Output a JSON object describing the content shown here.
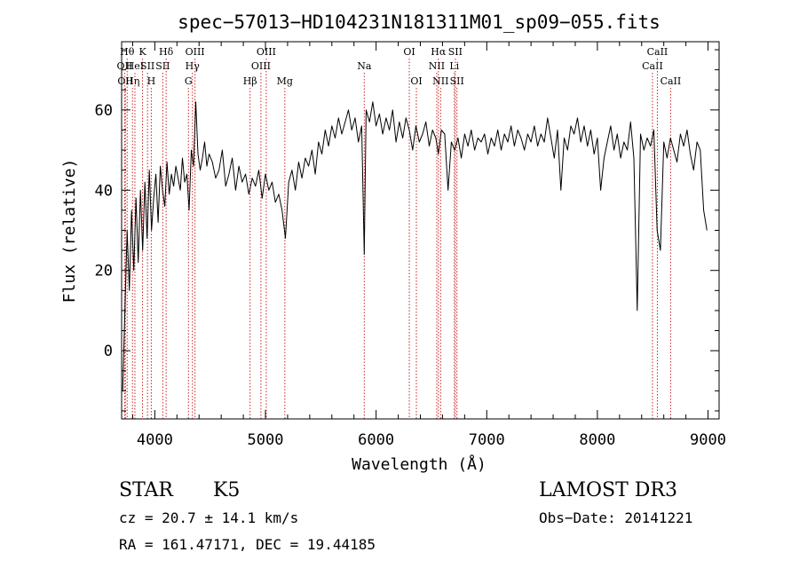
{
  "chart_data": {
    "type": "line",
    "title": "spec−57013−HD104231N181311M01_sp09−055.fits",
    "xlabel": "Wavelength (Å)",
    "ylabel": "Flux (relative)",
    "xlim": [
      3700,
      9100
    ],
    "ylim": [
      -17,
      77
    ],
    "xticks": [
      4000,
      5000,
      6000,
      7000,
      8000,
      9000
    ],
    "yticks": [
      0,
      20,
      40,
      60
    ],
    "line_color": "#000000",
    "marker_color": "#cc2222",
    "series": [
      {
        "name": "flux",
        "x": [
          3710,
          3730,
          3750,
          3770,
          3790,
          3810,
          3830,
          3850,
          3870,
          3890,
          3910,
          3930,
          3950,
          3970,
          3990,
          4010,
          4030,
          4050,
          4070,
          4090,
          4110,
          4130,
          4150,
          4170,
          4190,
          4210,
          4230,
          4250,
          4270,
          4290,
          4310,
          4330,
          4350,
          4370,
          4390,
          4410,
          4430,
          4450,
          4470,
          4490,
          4520,
          4550,
          4580,
          4610,
          4640,
          4670,
          4700,
          4730,
          4760,
          4790,
          4820,
          4850,
          4880,
          4910,
          4940,
          4970,
          5000,
          5030,
          5060,
          5090,
          5120,
          5150,
          5180,
          5210,
          5240,
          5270,
          5300,
          5330,
          5360,
          5390,
          5420,
          5450,
          5480,
          5510,
          5540,
          5570,
          5600,
          5630,
          5660,
          5690,
          5720,
          5750,
          5780,
          5810,
          5840,
          5870,
          5893,
          5910,
          5940,
          5970,
          6000,
          6030,
          6060,
          6090,
          6120,
          6150,
          6180,
          6210,
          6240,
          6270,
          6300,
          6330,
          6360,
          6390,
          6420,
          6450,
          6480,
          6510,
          6540,
          6563,
          6590,
          6620,
          6650,
          6680,
          6710,
          6740,
          6770,
          6800,
          6830,
          6860,
          6890,
          6920,
          6950,
          6980,
          7010,
          7040,
          7070,
          7100,
          7130,
          7160,
          7190,
          7220,
          7250,
          7280,
          7310,
          7340,
          7370,
          7400,
          7430,
          7460,
          7490,
          7520,
          7550,
          7580,
          7610,
          7640,
          7670,
          7700,
          7730,
          7760,
          7790,
          7820,
          7850,
          7880,
          7910,
          7940,
          7970,
          8000,
          8030,
          8060,
          8090,
          8120,
          8150,
          8180,
          8210,
          8240,
          8270,
          8300,
          8330,
          8360,
          8390,
          8420,
          8450,
          8480,
          8510,
          8540,
          8570,
          8600,
          8630,
          8660,
          8690,
          8720,
          8750,
          8780,
          8810,
          8840,
          8870,
          8900,
          8930,
          8960,
          8990
        ],
        "values": [
          -10,
          10,
          30,
          15,
          35,
          20,
          38,
          22,
          40,
          25,
          42,
          28,
          45,
          30,
          38,
          44,
          32,
          46,
          40,
          36,
          47,
          39,
          44,
          41,
          46,
          43,
          40,
          48,
          42,
          44,
          35,
          50,
          46,
          62,
          49,
          45,
          48,
          52,
          46,
          49,
          47,
          43,
          45,
          50,
          41,
          44,
          48,
          40,
          46,
          42,
          44,
          39,
          43,
          41,
          45,
          38,
          44,
          40,
          42,
          37,
          39,
          35,
          28,
          42,
          45,
          40,
          47,
          43,
          48,
          46,
          50,
          44,
          52,
          49,
          55,
          51,
          56,
          53,
          58,
          54,
          57,
          60,
          55,
          58,
          52,
          56,
          24,
          60,
          57,
          62,
          56,
          59,
          54,
          58,
          55,
          60,
          52,
          57,
          53,
          58,
          55,
          50,
          56,
          52,
          54,
          57,
          51,
          55,
          53,
          49,
          55,
          54,
          40,
          52,
          50,
          53,
          48,
          54,
          51,
          55,
          50,
          53,
          52,
          54,
          49,
          53,
          51,
          55,
          50,
          54,
          52,
          56,
          51,
          55,
          53,
          50,
          54,
          52,
          56,
          51,
          54,
          52,
          58,
          53,
          48,
          55,
          40,
          53,
          50,
          56,
          54,
          58,
          52,
          56,
          51,
          55,
          49,
          53,
          40,
          48,
          52,
          56,
          50,
          54,
          48,
          52,
          50,
          57,
          48,
          10,
          54,
          50,
          53,
          51,
          55,
          30,
          25,
          52,
          48,
          53,
          50,
          47,
          54,
          51,
          55,
          49,
          45,
          52,
          50,
          35,
          30
        ]
      }
    ],
    "markers": [
      {
        "x": 3727,
        "label": "OII",
        "row": 2
      },
      {
        "x": 3734,
        "label": "OII",
        "row": 3
      },
      {
        "x": 3750,
        "label": "Hθ",
        "row": 1
      },
      {
        "x": 3798,
        "label": "Hη",
        "row": 3
      },
      {
        "x": 3820,
        "label": "HeI",
        "row": 2
      },
      {
        "x": 3889,
        "label": "K",
        "row": 1
      },
      {
        "x": 3934,
        "label": "SII",
        "row": 2
      },
      {
        "x": 3968,
        "label": "H",
        "row": 3
      },
      {
        "x": 4072,
        "label": "SII",
        "row": 2
      },
      {
        "x": 4102,
        "label": "Hδ",
        "row": 1
      },
      {
        "x": 4304,
        "label": "G",
        "row": 3
      },
      {
        "x": 4340,
        "label": "Hγ",
        "row": 2
      },
      {
        "x": 4363,
        "label": "OIII",
        "row": 1
      },
      {
        "x": 4861,
        "label": "Hβ",
        "row": 3
      },
      {
        "x": 4959,
        "label": "OIII",
        "row": 2
      },
      {
        "x": 5007,
        "label": "OIII",
        "row": 1
      },
      {
        "x": 5175,
        "label": "Mg",
        "row": 3
      },
      {
        "x": 5893,
        "label": "Na",
        "row": 2
      },
      {
        "x": 6300,
        "label": "OI",
        "row": 1
      },
      {
        "x": 6364,
        "label": "OI",
        "row": 3
      },
      {
        "x": 6548,
        "label": "NII",
        "row": 2
      },
      {
        "x": 6563,
        "label": "Hα",
        "row": 1
      },
      {
        "x": 6583,
        "label": "NII",
        "row": 3
      },
      {
        "x": 6707,
        "label": "Li",
        "row": 2
      },
      {
        "x": 6716,
        "label": "SII",
        "row": 1
      },
      {
        "x": 6731,
        "label": "SII",
        "row": 3
      },
      {
        "x": 8498,
        "label": "CaII",
        "row": 2
      },
      {
        "x": 8542,
        "label": "CaII",
        "row": 1
      },
      {
        "x": 8662,
        "label": "CaII",
        "row": 3
      }
    ]
  },
  "info": {
    "object_class": "STAR",
    "subclass": "K5",
    "survey": "LAMOST DR3",
    "cz": "cz = 20.7 ± 14.1 km/s",
    "obs_date": "Obs−Date: 20141221",
    "coords": "RA = 161.47171, DEC =  19.44185"
  }
}
